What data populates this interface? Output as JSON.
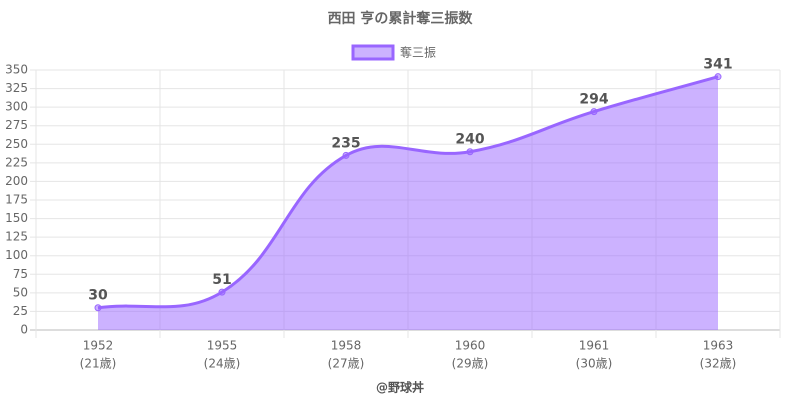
{
  "chart_data": {
    "type": "line",
    "title": "西田 亨の累計奪三振数",
    "categories": [
      "1952",
      "1955",
      "1958",
      "1960",
      "1961",
      "1963"
    ],
    "ages": [
      "(21歳)",
      "(24歳)",
      "(27歳)",
      "(29歳)",
      "(30歳)",
      "(32歳)"
    ],
    "series": [
      {
        "name": "奪三振",
        "color": "#9966ff",
        "values": [
          30,
          51,
          235,
          240,
          294,
          341
        ]
      }
    ],
    "ylim": [
      0,
      350
    ],
    "yticks": [
      0,
      25,
      50,
      75,
      100,
      125,
      150,
      175,
      200,
      225,
      250,
      275,
      300,
      325,
      350
    ],
    "grid": true,
    "legend": "top",
    "credit": "@野球丼"
  }
}
